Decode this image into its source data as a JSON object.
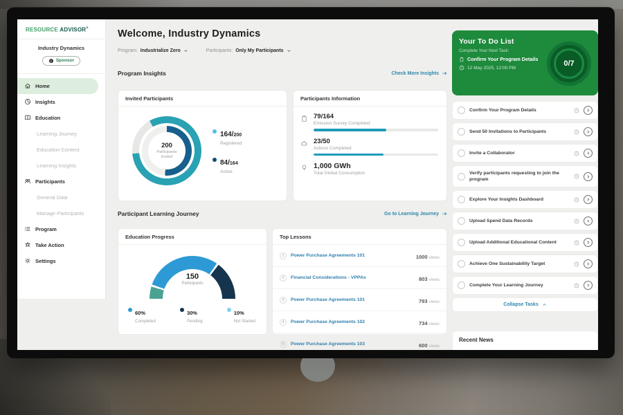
{
  "logo": {
    "first": "RESOURCE",
    "second": "ADVISOR",
    "plus": "+"
  },
  "sidebar": {
    "org": "Industry Dynamics",
    "badge": "Sponsor",
    "items": [
      {
        "label": "Home"
      },
      {
        "label": "Insights"
      },
      {
        "label": "Education"
      },
      {
        "label": "Learning Journey"
      },
      {
        "label": "Education Content"
      },
      {
        "label": "Learning Insights"
      },
      {
        "label": "Participants"
      },
      {
        "label": "General Data"
      },
      {
        "label": "Manage Participants"
      },
      {
        "label": "Program"
      },
      {
        "label": "Take Action"
      },
      {
        "label": "Settings"
      }
    ]
  },
  "header": {
    "title": "Welcome, Industry Dynamics",
    "filters": [
      {
        "label": "Program:",
        "value": "Industrialize Zero"
      },
      {
        "label": "Participants:",
        "value": "Only My Participants"
      }
    ]
  },
  "program_insights": {
    "section_title": "Program Insights",
    "link_label": "Check More Insights",
    "invited": {
      "card_title": "Invited Participants",
      "center_value": "200",
      "center_label": "Participants Invited",
      "legend": [
        {
          "value": "164/",
          "total": "200",
          "label": "Registered"
        },
        {
          "value": "84/",
          "total": "164",
          "label": "Active"
        }
      ]
    },
    "info": {
      "card_title": "Participants Information",
      "metrics": [
        {
          "value_text": "79/164",
          "label": "Emission Survey Completed",
          "value": 79,
          "total": 164
        },
        {
          "value_text": "23/50",
          "label": "Actions Completed",
          "value": 23,
          "total": 50
        },
        {
          "value_text": "1,000 GWh",
          "label": "Total Global Consumption"
        }
      ]
    }
  },
  "learning": {
    "section_title": "Participant Learning Journey",
    "link_label": "Go to Learning Journey",
    "progress": {
      "card_title": "Education Progress",
      "center_value": "150",
      "center_label": "Participants",
      "legend": [
        {
          "pct": "60%",
          "label": "Completed"
        },
        {
          "pct": "30%",
          "label": "Pending"
        },
        {
          "pct": "10%",
          "label": "Not Started"
        }
      ]
    },
    "lessons": {
      "card_title": "Top Lessons",
      "views_word": "views",
      "items": [
        {
          "rank": "1",
          "title": "Power Purchase Agreements 101",
          "views": "1000"
        },
        {
          "rank": "2",
          "title": "Financial Considerations - VPPAs",
          "views": "803"
        },
        {
          "rank": "3",
          "title": "Power Purchase Agreements 101",
          "views": "793"
        },
        {
          "rank": "4",
          "title": "Power Purchase Agreements 102",
          "views": "734"
        },
        {
          "rank": "5",
          "title": "Power Purchase Agreements 103",
          "views": "600"
        }
      ]
    }
  },
  "todo": {
    "title": "Your To Do List",
    "subtitle": "Complete Your Next Task:",
    "next_task": "Confirm Your Program Details",
    "due": "12 May 2025, 12:00 PM",
    "progress": "0/7",
    "items": [
      "Confirm Your Program Details",
      "Send 50 Invitations to Participants",
      "Invite a Collaborator",
      "Verify participants requesting to join the program",
      "Explore Your Insights Dashboard",
      "Upload Spend Data Records",
      "Upload Additional Educational Content",
      "Achieve One Sustainability Target",
      "Complete Your Learning Journey"
    ],
    "collapse_label": "Collapse Tasks"
  },
  "news": {
    "title": "Recent News"
  },
  "colors": {
    "brand_green": "#1e8a3c",
    "logo_green": "#3f9c68",
    "logo_dark": "#14584a",
    "active_nav_bg": "#ddeedf",
    "teal_ring": "#29a2b3",
    "navy_ring": "#175f8c",
    "legend_light_blue": "#4fc0e8",
    "legend_navy": "#0f4d77",
    "bar_fill": "#1f9cb9",
    "gauge_teal": "#4aa392",
    "gauge_blue": "#2d9ad6",
    "gauge_navy": "#16344e",
    "link_blue": "#2b87ad"
  },
  "chart_data": [
    {
      "type": "donut",
      "title": "Invited Participants",
      "center": {
        "value": 200,
        "label": "Participants Invited"
      },
      "series": [
        {
          "name": "Registered",
          "value": 164,
          "total": 200,
          "color": "#29a2b3",
          "ring": "outer"
        },
        {
          "name": "Active",
          "value": 84,
          "total": 164,
          "color": "#175f8c",
          "ring": "inner"
        }
      ]
    },
    {
      "type": "gauge",
      "title": "Education Progress",
      "center": {
        "value": 150,
        "label": "Participants"
      },
      "segments": [
        {
          "name": "Not Started",
          "pct": 10,
          "color": "#4aa392"
        },
        {
          "name": "Completed",
          "pct": 60,
          "color": "#2d9ad6"
        },
        {
          "name": "Pending",
          "pct": 30,
          "color": "#16344e"
        }
      ],
      "legend": [
        {
          "label": "Completed",
          "pct": 60,
          "color": "#2d9ad6"
        },
        {
          "label": "Pending",
          "pct": 30,
          "color": "#16344e"
        },
        {
          "label": "Not Started",
          "pct": 10,
          "color": "#7fd0ee"
        }
      ]
    }
  ]
}
